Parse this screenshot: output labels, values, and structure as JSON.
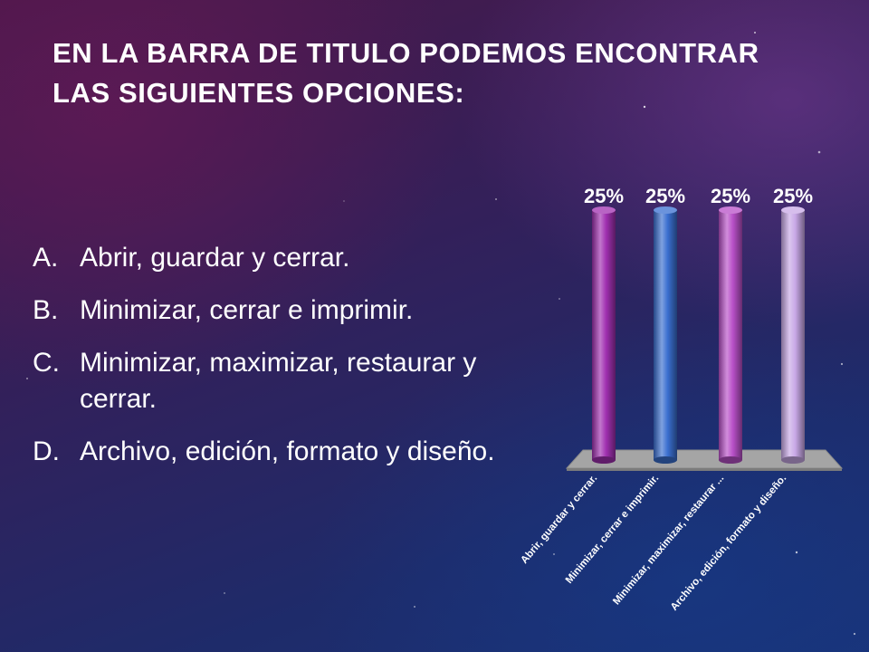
{
  "slide": {
    "title": "EN LA BARRA DE TITULO PODEMOS ENCONTRAR LAS SIGUIENTES OPCIONES:",
    "options": [
      {
        "letter": "A.",
        "text": "Abrir, guardar y cerrar."
      },
      {
        "letter": "B.",
        "text": "Minimizar, cerrar e imprimir."
      },
      {
        "letter": "C.",
        "text": "Minimizar, maximizar, restaurar y cerrar."
      },
      {
        "letter": "D.",
        "text": "Archivo, edición, formato y diseño."
      }
    ]
  },
  "chart_data": {
    "type": "bar",
    "categories": [
      "Abrir, guardar y cerrar.",
      "Minimizar, cerrar e imprimir.",
      "Minimizar, maximizar, restaurar ...",
      "Archivo, edición, formato y diseño."
    ],
    "values": [
      25,
      25,
      25,
      25
    ],
    "data_labels": [
      "25%",
      "25%",
      "25%",
      "25%"
    ],
    "colors": [
      "#a030b0",
      "#3a6fd0",
      "#b850c8",
      "#c8a8e6"
    ],
    "title": "",
    "xlabel": "",
    "ylabel": "",
    "ylim": [
      0,
      25
    ],
    "grid": false,
    "legend": "none",
    "style": "3d-cylinder"
  }
}
